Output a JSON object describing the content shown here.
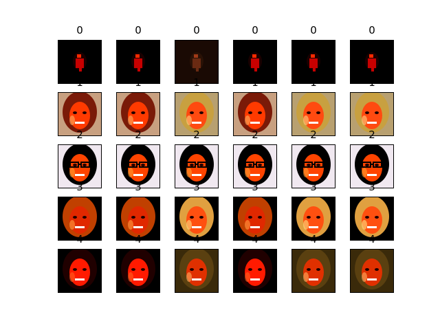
{
  "figure": {
    "row_labels": [
      "0",
      "1",
      "2",
      "3",
      "4"
    ],
    "grid": {
      "rows": 5,
      "cols": 6
    },
    "rows": [
      {
        "label": "0",
        "cells": [
          "dark-mask-face",
          "dark-mask-face",
          "dark-brown-face",
          "dark-mask-face",
          "dark-mask-face",
          "dark-mask-face"
        ]
      },
      {
        "label": "1",
        "cells": [
          "woman-brown-hair",
          "woman-brown-hair",
          "woman-blonde-hair",
          "woman-brown-hair",
          "woman-blonde-hair",
          "woman-blonde-hair"
        ]
      },
      {
        "label": "2",
        "cells": [
          "man-glasses",
          "man-glasses",
          "man-glasses",
          "man-glasses",
          "man-glasses",
          "man-glasses"
        ]
      },
      {
        "label": "3",
        "cells": [
          "woman-smile",
          "woman-smile",
          "woman-blonde-smile",
          "woman-smile",
          "woman-blonde-smile",
          "woman-blonde-smile"
        ]
      },
      {
        "label": "4",
        "cells": [
          "woman-dark-hair",
          "woman-dark-hair",
          "woman-olive",
          "woman-dark-hair",
          "woman-olive",
          "woman-olive"
        ]
      }
    ]
  }
}
